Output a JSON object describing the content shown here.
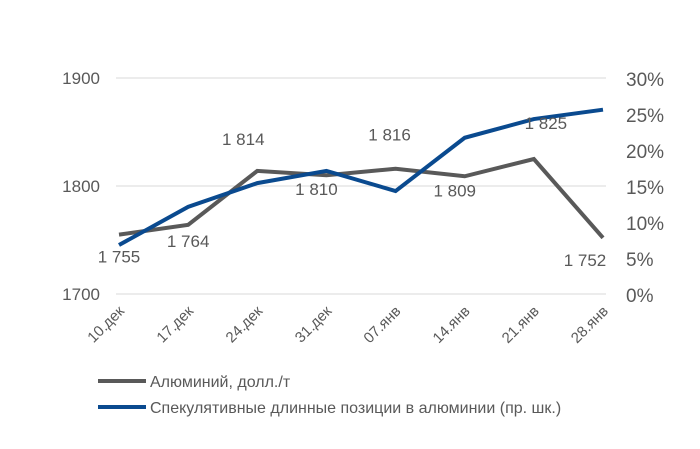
{
  "chart_data": {
    "type": "line",
    "categories": [
      "10.дек",
      "17.дек",
      "24.дек",
      "31.дек",
      "07.янв",
      "14.янв",
      "21.янв",
      "28.янв"
    ],
    "series": [
      {
        "name": "Алюминий, долл./т",
        "axis": "left",
        "color": "#595959",
        "values": [
          1755,
          1764,
          1814,
          1810,
          1816,
          1809,
          1825,
          1752
        ],
        "labels": [
          "1 755",
          "1 764",
          "1 814",
          "1 810",
          "1 816",
          "1 809",
          "1 825",
          "1 752"
        ]
      },
      {
        "name": "Спекулятивные длинные позиции в алюминии (пр. шк.)",
        "axis": "right",
        "color": "#0A4A8F",
        "values": [
          6.8,
          12.1,
          15.4,
          17.1,
          14.3,
          21.7,
          24.3,
          25.6
        ]
      }
    ],
    "left_axis": {
      "min": 1700,
      "max": 1900,
      "ticks": [
        "1700",
        "1800",
        "1900"
      ]
    },
    "right_axis": {
      "min": 0,
      "max": 30,
      "ticks": [
        "0%",
        "5%",
        "10%",
        "15%",
        "20%",
        "25%",
        "30%"
      ]
    },
    "grid": true,
    "legend_position": "bottom"
  }
}
